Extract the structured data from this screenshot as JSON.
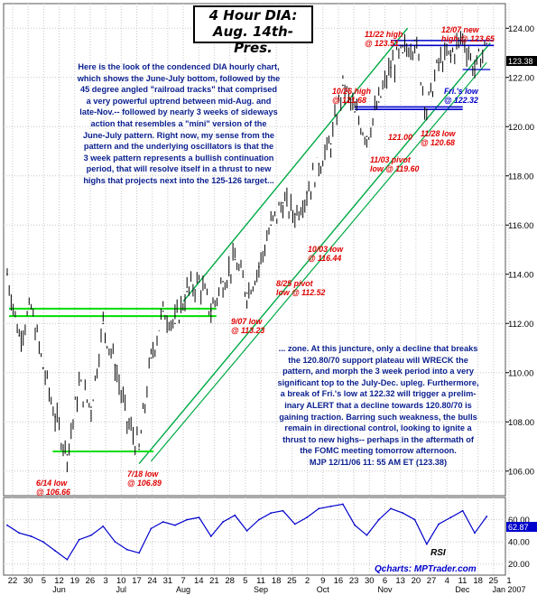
{
  "title": {
    "line1": "4 Hour DIA:",
    "line2": "Aug. 14th-Pres."
  },
  "commentary": {
    "top": [
      "Here is the look of the condenced DIA hourly chart,",
      "which shows the June-July bottom, followed by the",
      "45 degree angled \"railroad tracks\" that comprised",
      "a very powerful uptrend between mid-Aug. and",
      "late-Nov.-- followed by nearly 3 weeks of sideways",
      "action that resembles a \"mini\" version of the",
      "June-July pattern. Right now, my sense from the",
      "pattern and the underlying oscillators is that the",
      "3 week pattern represents a bullish continuation",
      "period, that will resolve itself in a thrust to new",
      "highs that projects next into the 125-126 target..."
    ],
    "bottom": [
      "... zone.  At this juncture, only a decline that breaks",
      "the 120.80/70 support plateau will WRECK the",
      "pattern, and morph the 3 week period into a very",
      "significant top to the July-Dec. upleg. Furthermore,",
      "a break of Fri.'s low at 122.32 will trigger a prelim-",
      "inary ALERT that a decline towards 120.80/70 is",
      "gaining traction. Barring such weakness, the bulls",
      "remain in directional control, looking to ignite a",
      "thrust to new highs-- perhaps in the aftermath of",
      "the FOMC meeting tomorrow afternoon.",
      "MJP 12/11/06  11: 55 AM ET  (123.38)"
    ]
  },
  "annotations": {
    "jun14": [
      "6/14 low",
      "@ 106.66"
    ],
    "jul18": [
      "7/18 low",
      "@ 106.89"
    ],
    "aug25": [
      "8/25 pivot",
      "low @ 112.52"
    ],
    "sep07": [
      "9/07 low",
      "@ 113.23"
    ],
    "oct03": [
      "10/03 low",
      "@ 116.44"
    ],
    "oct26": [
      "10/26 high",
      "@ 121.68"
    ],
    "nov03": [
      "11/03 pivot",
      "low @ 119.60"
    ],
    "nov22": [
      "11/22 high",
      "@ 123.51"
    ],
    "dec07": [
      "12/07 new",
      "high @ 123.65"
    ],
    "lvl121": [
      "121.00"
    ],
    "nov28": [
      "11/28 low",
      "@ 120.68"
    ],
    "fri": [
      "Fri.'s low",
      "@ 122.32"
    ]
  },
  "price_label": "123.38",
  "rsi_value_label": "62.87",
  "rsi_name": "RSI",
  "credit": "Qcharts: MPTrader.com",
  "colors": {
    "price_bars": "#000000",
    "uptrend_channel": "#00aa44",
    "support_lines": "#00dd00",
    "resistance_lines": "#0000cc",
    "annotations": "#e00000",
    "commentary": "#0a1f8f",
    "price_marker_bg": "#000000",
    "rsi_marker_bg": "#0000cc"
  },
  "chart_data": {
    "type": "line",
    "main_panel": {
      "series": [
        {
          "name": "DIA",
          "x": [
            "May 22",
            "May 26",
            "May 30",
            "Jun 05",
            "Jun 12",
            "Jun 14",
            "Jun 19",
            "Jun 26",
            "Jul 03",
            "Jul 10",
            "Jul 14",
            "Jul 18",
            "Jul 24",
            "Jul 31",
            "Aug 07",
            "Aug 14",
            "Aug 21",
            "Aug 25",
            "Aug 28",
            "Sep 05",
            "Sep 07",
            "Sep 11",
            "Sep 18",
            "Sep 25",
            "Oct 03",
            "Oct 09",
            "Oct 16",
            "Oct 20",
            "Oct 26",
            "Oct 30",
            "Nov 03",
            "Nov 08",
            "Nov 13",
            "Nov 17",
            "Nov 22",
            "Nov 28",
            "Dec 01",
            "Dec 04",
            "Dec 07",
            "Dec 08",
            "Dec 11"
          ],
          "y": [
            114.0,
            111.5,
            112.6,
            110.2,
            108.2,
            106.66,
            109.5,
            108.6,
            112.0,
            110.3,
            108.0,
            106.89,
            110.6,
            112.5,
            112.0,
            113.3,
            113.7,
            112.52,
            113.7,
            114.6,
            113.23,
            114.3,
            116.0,
            116.9,
            116.44,
            117.3,
            118.5,
            119.3,
            121.68,
            120.6,
            119.6,
            121.0,
            122.4,
            123.0,
            123.51,
            120.68,
            122.6,
            122.9,
            123.65,
            122.32,
            123.38
          ]
        }
      ],
      "y_ticks": [
        "106.00",
        "108.00",
        "110.00",
        "112.00",
        "114.00",
        "116.00",
        "118.00",
        "120.00",
        "122.00",
        "124.00"
      ],
      "ylim": [
        105.0,
        125.0
      ],
      "support_levels": [
        112.6,
        112.3,
        106.8,
        120.8,
        120.7
      ],
      "resistance_levels": [
        123.5,
        123.3
      ]
    },
    "rsi_panel": {
      "name": "RSI",
      "y_ticks": [
        "20.00",
        "40.00",
        "60.00"
      ],
      "ylim": [
        10,
        80
      ],
      "values": [
        55,
        48,
        45,
        40,
        32,
        24,
        42,
        46,
        54,
        40,
        33,
        30,
        52,
        58,
        55,
        60,
        62,
        45,
        58,
        64,
        50,
        60,
        66,
        68,
        56,
        62,
        70,
        72,
        74,
        55,
        46,
        60,
        70,
        66,
        60,
        38,
        56,
        62,
        68,
        48,
        62.87
      ]
    },
    "x_tick_labels": [
      "22",
      "30",
      "5",
      "12",
      "19",
      "26",
      "3",
      "10",
      "17",
      "24",
      "31",
      "7",
      "14",
      "21",
      "28",
      "5",
      "11",
      "18",
      "25",
      "2",
      "9",
      "16",
      "23",
      "30",
      "6",
      "13",
      "20",
      "27",
      "4",
      "11",
      "18",
      "25",
      "1"
    ],
    "x_month_labels": [
      "Jun",
      "Jul",
      "Aug",
      "Sep",
      "Oct",
      "Nov",
      "Dec",
      "Jan 2007"
    ],
    "grid": true
  }
}
